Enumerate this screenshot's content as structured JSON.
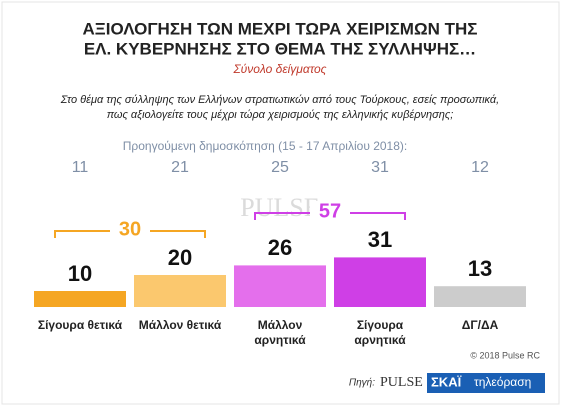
{
  "chart_data": {
    "type": "bar",
    "title": [
      "ΑΞΙΟΛΟΓΗΣΗ ΤΩΝ ΜΕΧΡΙ ΤΩΡΑ ΧΕΙΡΙΣΜΩΝ ΤΗΣ",
      "ΕΛ. ΚΥΒΕΡΝΗΣΗΣ ΣΤΟ ΘΕΜΑ ΤΗΣ ΣΥΛΛΗΨΗΣ…"
    ],
    "subtitle": "Σύνολο δείγματος",
    "question": [
      "Στο θέμα της σύλληψης των Ελλήνων στρατιωτικών από τους Τούρκους, εσείς προσωπικά,",
      "πως αξιολογείτε τους μέχρι τώρα χειρισμούς της ελληνικής κυβέρνησης;"
    ],
    "previous_label": "Προηγούμενη δημοσκόπηση (15 - 17 Απριλίου 2018):",
    "categories": [
      "Σίγουρα θετικά",
      "Μάλλον θετικά",
      "Μάλλον αρνητικά",
      "Σίγουρα αρνητικά",
      "ΔΓ/ΔΑ"
    ],
    "values": [
      10,
      20,
      26,
      31,
      13
    ],
    "previous_values": [
      11,
      21,
      25,
      31,
      12
    ],
    "colors": [
      "#f5a623",
      "#fbc86e",
      "#e46fec",
      "#cf3fe6",
      "#cccccc"
    ],
    "groups": [
      {
        "value": 30,
        "categories": [
          0,
          1
        ],
        "color": "#f5a623"
      },
      {
        "value": 57,
        "categories": [
          2,
          3
        ],
        "color": "#cf3fe6"
      }
    ],
    "watermark": "PULSE",
    "copyright": "© 2018 Pulse RC",
    "source_label": "Πηγή:",
    "source_logos": [
      "PULSE",
      "ΣΚΑΪ",
      "τηλεόραση"
    ]
  }
}
